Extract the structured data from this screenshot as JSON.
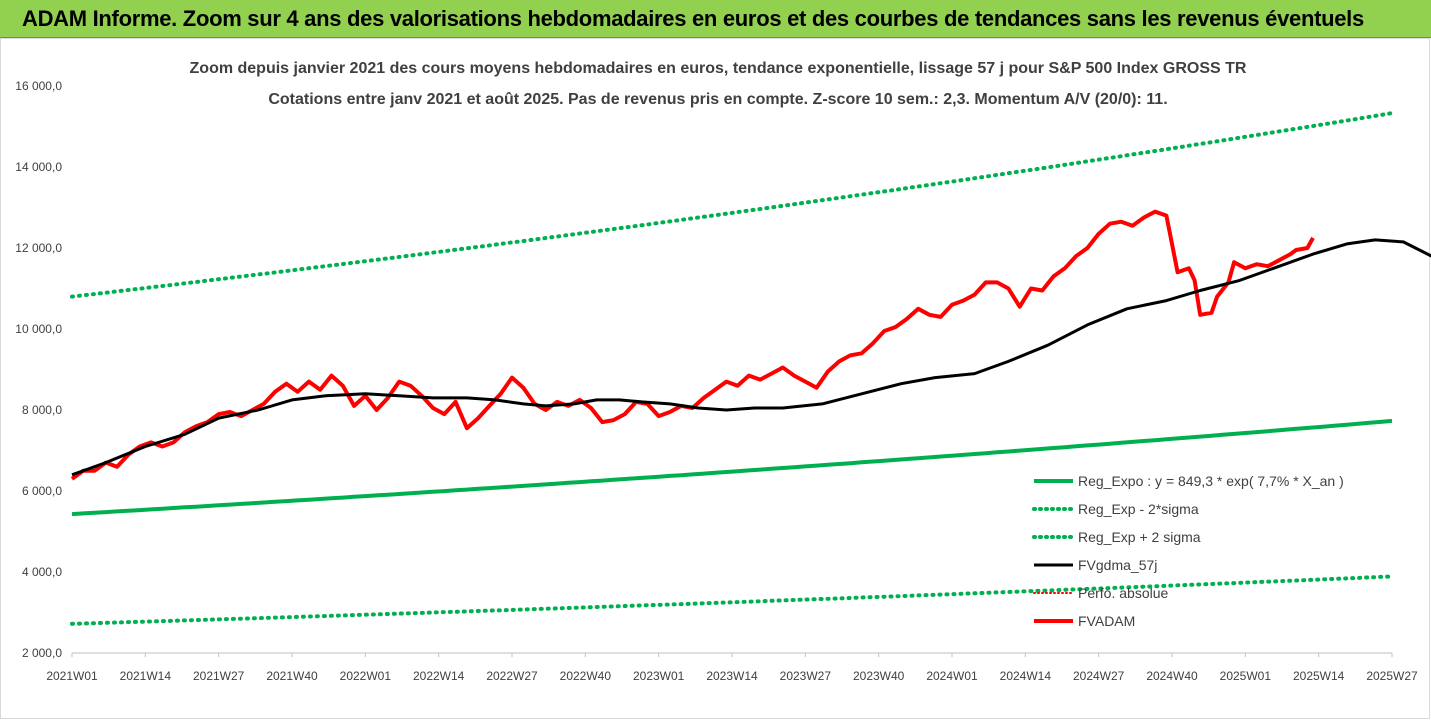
{
  "banner": {
    "title": "ADAM Informe. Zoom sur 4 ans des valorisations hebdomadaires en euros et des courbes de tendances sans les revenus éventuels"
  },
  "chart_data": {
    "type": "line",
    "title": "Zoom depuis janvier 2021 des cours moyens hebdomadaires en euros, tendance exponentielle, lissage 57 j pour S&P 500 Index GROSS TR",
    "subtitle": "Cotations entre janv 2021 et août 2025.  Pas de revenus pris en compte. Z-score 10 sem.: 2,3. Momentum A/V (20/0): 11.",
    "x_tick_labels": [
      "2021W01",
      "2021W14",
      "2021W27",
      "2021W40",
      "2022W01",
      "2022W14",
      "2022W27",
      "2022W40",
      "2023W01",
      "2023W14",
      "2023W27",
      "2023W40",
      "2024W01",
      "2024W14",
      "2024W27",
      "2024W40",
      "2025W01",
      "2025W14",
      "2025W27"
    ],
    "y_tick_labels": [
      "2 000,0",
      "4 000,0",
      "6 000,0",
      "8 000,0",
      "10 000,0",
      "12 000,0",
      "14 000,0",
      "16 000,0"
    ],
    "ylim": [
      2000,
      16000
    ],
    "grid": false,
    "legend_position": "bottom-right",
    "colors": {
      "trend": "#00b050",
      "fvadam": "#ff0000",
      "fvgdma": "#000000",
      "banner": "#92d050"
    },
    "series": [
      {
        "name": "Reg_Expo : y = 849,3 * exp( 7,7% *  X_an )",
        "style": "solid-green",
        "start": 5430,
        "end": 7730
      },
      {
        "name": "Reg_Exp - 2*sigma",
        "style": "dotted-green",
        "start": 2720,
        "end": 3890
      },
      {
        "name": "Reg_Exp + 2 sigma",
        "style": "dotted-green",
        "start": 10800,
        "end": 15330
      },
      {
        "name": "FVgdma_57j",
        "style": "solid-black",
        "points": [
          [
            0,
            6400
          ],
          [
            6,
            6700
          ],
          [
            13,
            7100
          ],
          [
            20,
            7400
          ],
          [
            26,
            7800
          ],
          [
            33,
            8000
          ],
          [
            39,
            8250
          ],
          [
            45,
            8350
          ],
          [
            52,
            8400
          ],
          [
            58,
            8350
          ],
          [
            64,
            8300
          ],
          [
            70,
            8300
          ],
          [
            75,
            8250
          ],
          [
            80,
            8150
          ],
          [
            84,
            8100
          ],
          [
            89,
            8150
          ],
          [
            93,
            8250
          ],
          [
            97,
            8250
          ],
          [
            101,
            8200
          ],
          [
            106,
            8150
          ],
          [
            111,
            8050
          ],
          [
            116,
            8000
          ],
          [
            121,
            8050
          ],
          [
            126,
            8050
          ],
          [
            133,
            8150
          ],
          [
            140,
            8400
          ],
          [
            147,
            8650
          ],
          [
            153,
            8800
          ],
          [
            160,
            8900
          ],
          [
            166,
            9200
          ],
          [
            173,
            9600
          ],
          [
            180,
            10100
          ],
          [
            187,
            10500
          ],
          [
            194,
            10700
          ],
          [
            200,
            10950
          ],
          [
            207,
            11200
          ],
          [
            213,
            11500
          ],
          [
            220,
            11850
          ],
          [
            226,
            12100
          ],
          [
            231,
            12200
          ],
          [
            236,
            12150
          ],
          [
            241,
            11800
          ],
          [
            245,
            11500
          ],
          [
            248,
            11450
          ],
          [
            252,
            11550
          ],
          [
            257,
            11700
          ],
          [
            262,
            11850
          ],
          [
            268,
            12000
          ]
        ]
      },
      {
        "name": "Perfo. absolue",
        "style": "dotted-red",
        "points": []
      },
      {
        "name": "FVADAM",
        "style": "solid-red",
        "points": [
          [
            0,
            6300
          ],
          [
            2,
            6500
          ],
          [
            4,
            6500
          ],
          [
            6,
            6700
          ],
          [
            8,
            6600
          ],
          [
            10,
            6900
          ],
          [
            12,
            7100
          ],
          [
            14,
            7200
          ],
          [
            16,
            7100
          ],
          [
            18,
            7200
          ],
          [
            20,
            7450
          ],
          [
            22,
            7600
          ],
          [
            24,
            7700
          ],
          [
            26,
            7900
          ],
          [
            28,
            7950
          ],
          [
            30,
            7850
          ],
          [
            32,
            8000
          ],
          [
            34,
            8150
          ],
          [
            36,
            8450
          ],
          [
            38,
            8650
          ],
          [
            40,
            8450
          ],
          [
            42,
            8700
          ],
          [
            44,
            8500
          ],
          [
            46,
            8850
          ],
          [
            48,
            8600
          ],
          [
            50,
            8100
          ],
          [
            52,
            8350
          ],
          [
            54,
            8000
          ],
          [
            56,
            8300
          ],
          [
            58,
            8700
          ],
          [
            60,
            8600
          ],
          [
            62,
            8350
          ],
          [
            64,
            8050
          ],
          [
            66,
            7900
          ],
          [
            68,
            8200
          ],
          [
            70,
            7550
          ],
          [
            72,
            7800
          ],
          [
            74,
            8100
          ],
          [
            76,
            8400
          ],
          [
            78,
            8800
          ],
          [
            80,
            8550
          ],
          [
            82,
            8150
          ],
          [
            84,
            8000
          ],
          [
            86,
            8200
          ],
          [
            88,
            8100
          ],
          [
            90,
            8250
          ],
          [
            92,
            8050
          ],
          [
            94,
            7700
          ],
          [
            96,
            7750
          ],
          [
            98,
            7900
          ],
          [
            100,
            8200
          ],
          [
            102,
            8150
          ],
          [
            104,
            7850
          ],
          [
            106,
            7950
          ],
          [
            108,
            8100
          ],
          [
            110,
            8050
          ],
          [
            112,
            8300
          ],
          [
            114,
            8500
          ],
          [
            116,
            8700
          ],
          [
            118,
            8600
          ],
          [
            120,
            8850
          ],
          [
            122,
            8750
          ],
          [
            124,
            8900
          ],
          [
            126,
            9050
          ],
          [
            128,
            8850
          ],
          [
            130,
            8700
          ],
          [
            132,
            8550
          ],
          [
            134,
            8950
          ],
          [
            136,
            9200
          ],
          [
            138,
            9350
          ],
          [
            140,
            9400
          ],
          [
            142,
            9650
          ],
          [
            144,
            9950
          ],
          [
            146,
            10050
          ],
          [
            148,
            10250
          ],
          [
            150,
            10500
          ],
          [
            152,
            10350
          ],
          [
            154,
            10300
          ],
          [
            156,
            10600
          ],
          [
            158,
            10700
          ],
          [
            160,
            10850
          ],
          [
            162,
            11150
          ],
          [
            164,
            11150
          ],
          [
            166,
            11000
          ],
          [
            168,
            10550
          ],
          [
            170,
            11000
          ],
          [
            172,
            10950
          ],
          [
            174,
            11300
          ],
          [
            176,
            11500
          ],
          [
            178,
            11800
          ],
          [
            180,
            12000
          ],
          [
            182,
            12350
          ],
          [
            184,
            12600
          ],
          [
            186,
            12650
          ],
          [
            188,
            12550
          ],
          [
            190,
            12750
          ],
          [
            192,
            12900
          ],
          [
            194,
            12800
          ],
          [
            195,
            12100
          ],
          [
            196,
            11400
          ],
          [
            198,
            11500
          ],
          [
            199,
            11200
          ],
          [
            200,
            10350
          ],
          [
            202,
            10400
          ],
          [
            203,
            10800
          ],
          [
            205,
            11150
          ],
          [
            206,
            11650
          ],
          [
            208,
            11500
          ],
          [
            210,
            11600
          ],
          [
            212,
            11550
          ],
          [
            214,
            11700
          ],
          [
            216,
            11850
          ],
          [
            217,
            11950
          ],
          [
            219,
            12000
          ],
          [
            220,
            12250
          ]
        ]
      }
    ]
  }
}
